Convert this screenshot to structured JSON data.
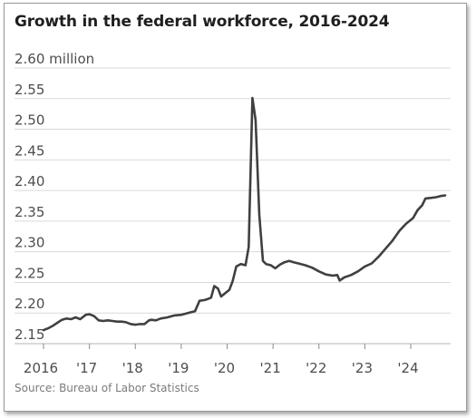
{
  "chart_data": {
    "type": "line",
    "title": "Growth in the federal workforce, 2016-2024",
    "source": "Source: Bureau of Labor Statistics",
    "unit_label": "2.60 million",
    "ylim": [
      2.15,
      2.6
    ],
    "xlim": [
      2016,
      2024.75
    ],
    "grid": true,
    "y_ticks": [
      {
        "value": 2.15,
        "label": "2.15"
      },
      {
        "value": 2.2,
        "label": "2.20"
      },
      {
        "value": 2.25,
        "label": "2.25"
      },
      {
        "value": 2.3,
        "label": "2.30"
      },
      {
        "value": 2.35,
        "label": "2.35"
      },
      {
        "value": 2.4,
        "label": "2.40"
      },
      {
        "value": 2.45,
        "label": "2.45"
      },
      {
        "value": 2.5,
        "label": "2.50"
      },
      {
        "value": 2.55,
        "label": "2.55"
      },
      {
        "value": 2.6,
        "label": "2.60 million"
      }
    ],
    "x_ticks": [
      {
        "value": 2016,
        "label": "2016"
      },
      {
        "value": 2017,
        "label": "'17"
      },
      {
        "value": 2018,
        "label": "'18"
      },
      {
        "value": 2019,
        "label": "'19"
      },
      {
        "value": 2020,
        "label": "'20"
      },
      {
        "value": 2021,
        "label": "'21"
      },
      {
        "value": 2022,
        "label": "'22"
      },
      {
        "value": 2023,
        "label": "'23"
      },
      {
        "value": 2024,
        "label": "'24"
      }
    ],
    "series": [
      {
        "color": "#404040",
        "points": [
          [
            2016.0,
            2.172
          ],
          [
            2016.1,
            2.175
          ],
          [
            2016.2,
            2.179
          ],
          [
            2016.3,
            2.184
          ],
          [
            2016.4,
            2.189
          ],
          [
            2016.5,
            2.191
          ],
          [
            2016.6,
            2.19
          ],
          [
            2016.7,
            2.193
          ],
          [
            2016.8,
            2.19
          ],
          [
            2016.92,
            2.197
          ],
          [
            2017.0,
            2.198
          ],
          [
            2017.1,
            2.195
          ],
          [
            2017.2,
            2.188
          ],
          [
            2017.3,
            2.187
          ],
          [
            2017.4,
            2.188
          ],
          [
            2017.5,
            2.187
          ],
          [
            2017.6,
            2.186
          ],
          [
            2017.7,
            2.186
          ],
          [
            2017.8,
            2.185
          ],
          [
            2017.9,
            2.182
          ],
          [
            2018.0,
            2.181
          ],
          [
            2018.1,
            2.182
          ],
          [
            2018.2,
            2.182
          ],
          [
            2018.3,
            2.188
          ],
          [
            2018.35,
            2.189
          ],
          [
            2018.45,
            2.188
          ],
          [
            2018.55,
            2.191
          ],
          [
            2018.7,
            2.193
          ],
          [
            2018.85,
            2.196
          ],
          [
            2019.0,
            2.197
          ],
          [
            2019.1,
            2.199
          ],
          [
            2019.2,
            2.201
          ],
          [
            2019.3,
            2.203
          ],
          [
            2019.4,
            2.22
          ],
          [
            2019.5,
            2.221
          ],
          [
            2019.58,
            2.223
          ],
          [
            2019.65,
            2.225
          ],
          [
            2019.72,
            2.244
          ],
          [
            2019.8,
            2.24
          ],
          [
            2019.87,
            2.227
          ],
          [
            2019.95,
            2.232
          ],
          [
            2020.05,
            2.238
          ],
          [
            2020.12,
            2.252
          ],
          [
            2020.2,
            2.276
          ],
          [
            2020.3,
            2.28
          ],
          [
            2020.4,
            2.278
          ],
          [
            2020.47,
            2.308
          ],
          [
            2020.55,
            2.551
          ],
          [
            2020.62,
            2.515
          ],
          [
            2020.7,
            2.36
          ],
          [
            2020.78,
            2.285
          ],
          [
            2020.85,
            2.28
          ],
          [
            2020.95,
            2.278
          ],
          [
            2021.05,
            2.273
          ],
          [
            2021.15,
            2.279
          ],
          [
            2021.25,
            2.283
          ],
          [
            2021.35,
            2.285
          ],
          [
            2021.45,
            2.283
          ],
          [
            2021.55,
            2.281
          ],
          [
            2021.7,
            2.278
          ],
          [
            2021.85,
            2.274
          ],
          [
            2022.0,
            2.268
          ],
          [
            2022.15,
            2.263
          ],
          [
            2022.3,
            2.261
          ],
          [
            2022.4,
            2.262
          ],
          [
            2022.45,
            2.253
          ],
          [
            2022.55,
            2.258
          ],
          [
            2022.7,
            2.262
          ],
          [
            2022.85,
            2.268
          ],
          [
            2023.0,
            2.276
          ],
          [
            2023.15,
            2.281
          ],
          [
            2023.3,
            2.292
          ],
          [
            2023.45,
            2.305
          ],
          [
            2023.6,
            2.318
          ],
          [
            2023.75,
            2.334
          ],
          [
            2023.9,
            2.346
          ],
          [
            2024.05,
            2.355
          ],
          [
            2024.15,
            2.368
          ],
          [
            2024.25,
            2.376
          ],
          [
            2024.32,
            2.387
          ],
          [
            2024.45,
            2.388
          ],
          [
            2024.55,
            2.389
          ],
          [
            2024.65,
            2.391
          ],
          [
            2024.75,
            2.392
          ]
        ]
      }
    ]
  }
}
